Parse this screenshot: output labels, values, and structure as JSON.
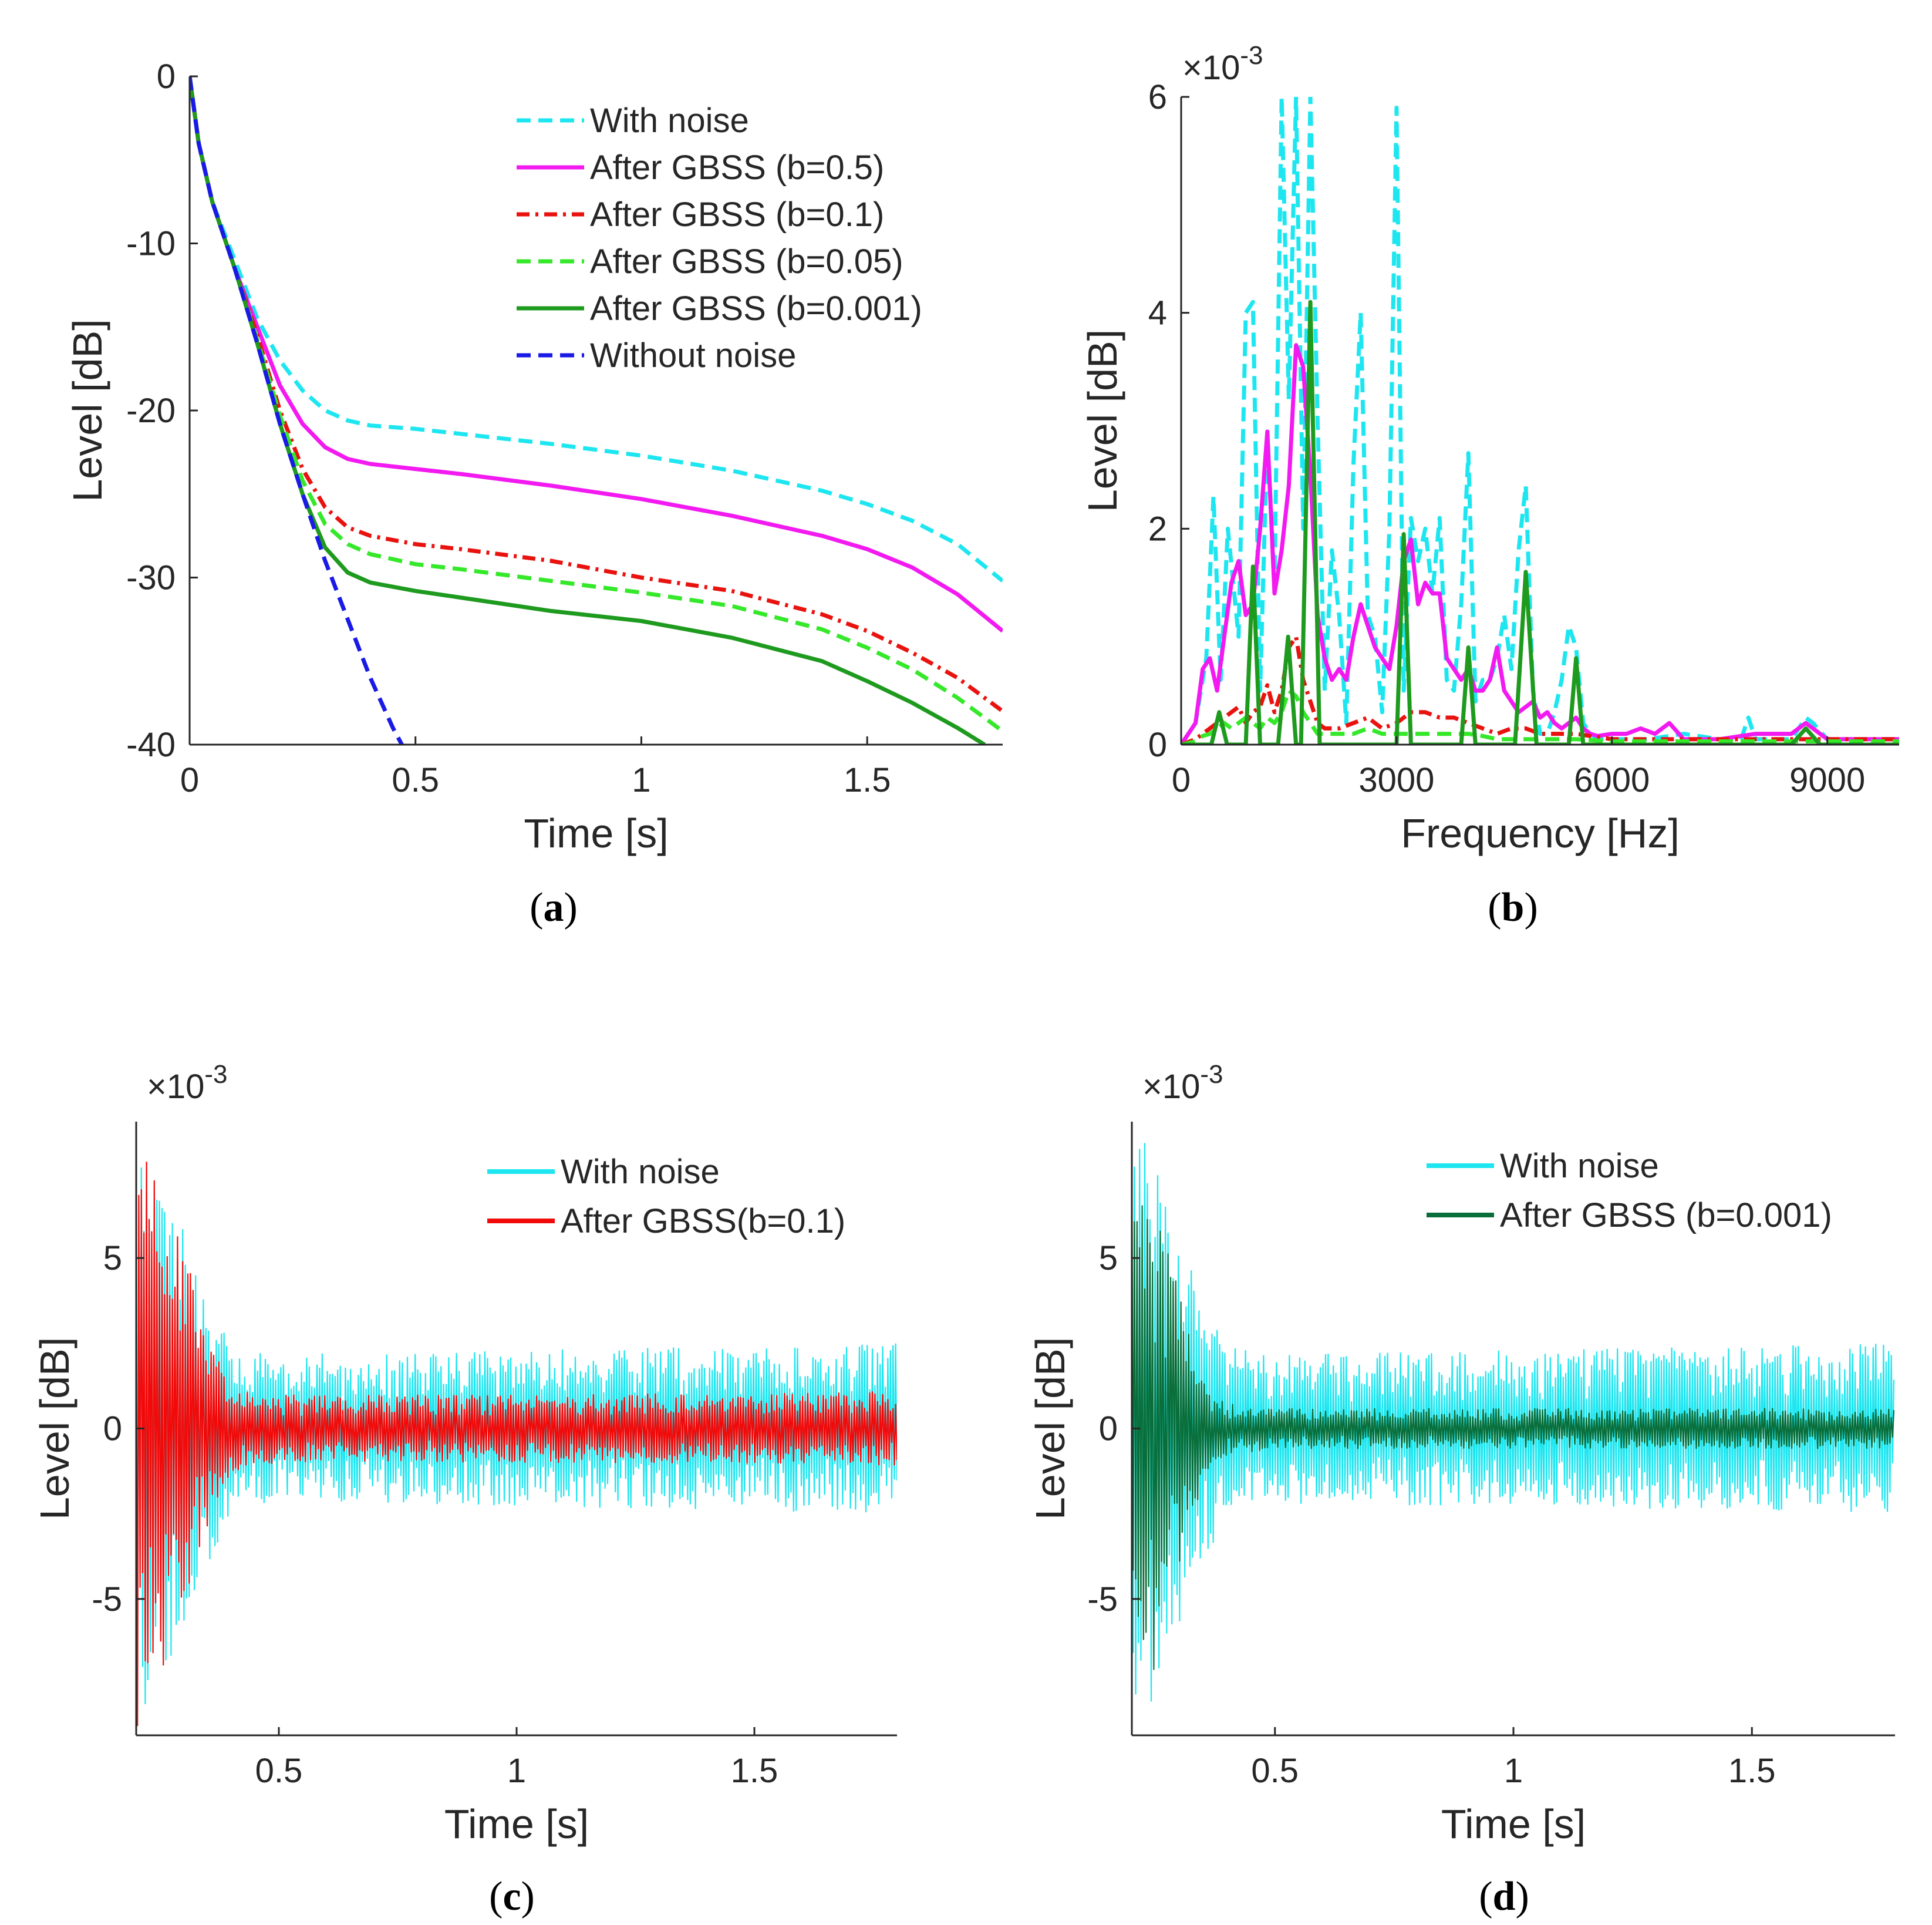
{
  "chart_data": [
    {
      "type": "line",
      "panel_label": "a",
      "xlabel": "Time [s]",
      "ylabel": "Level [dB]",
      "xlim": [
        0,
        1.8
      ],
      "ylim": [
        -40,
        0
      ],
      "xticks": [
        0,
        0.5,
        1,
        1.5
      ],
      "xtick_labels": [
        "0",
        "0.5",
        "1",
        "1.5"
      ],
      "yticks": [
        0,
        -10,
        -20,
        -30,
        -40
      ],
      "ytick_labels": [
        "0",
        "-10",
        "-20",
        "-30",
        "-40"
      ],
      "grid": false,
      "legend_position": "top-right",
      "series": [
        {
          "name": "With noise",
          "color": "#1ee6f0",
          "dash": "dashed",
          "x": [
            0,
            0.02,
            0.05,
            0.1,
            0.15,
            0.2,
            0.25,
            0.3,
            0.35,
            0.4,
            0.5,
            0.6,
            0.8,
            1.0,
            1.2,
            1.4,
            1.5,
            1.6,
            1.7,
            1.8
          ],
          "y": [
            0,
            -4,
            -7.5,
            -11,
            -14.5,
            -17,
            -18.8,
            -20,
            -20.6,
            -20.9,
            -21.1,
            -21.4,
            -22,
            -22.7,
            -23.6,
            -24.8,
            -25.6,
            -26.6,
            -28,
            -30.2
          ]
        },
        {
          "name": "After GBSS (b=0.5)",
          "color": "#f21af0",
          "dash": "solid",
          "x": [
            0,
            0.02,
            0.05,
            0.1,
            0.15,
            0.2,
            0.25,
            0.3,
            0.35,
            0.4,
            0.5,
            0.6,
            0.8,
            1.0,
            1.2,
            1.4,
            1.5,
            1.6,
            1.7,
            1.8
          ],
          "y": [
            0,
            -4,
            -7.5,
            -11.5,
            -15,
            -18.5,
            -20.8,
            -22.2,
            -22.9,
            -23.2,
            -23.5,
            -23.8,
            -24.5,
            -25.3,
            -26.3,
            -27.5,
            -28.3,
            -29.4,
            -31,
            -33.2
          ]
        },
        {
          "name": "After GBSS (b=0.1)",
          "color": "#e8130f",
          "dash": "dashdot",
          "x": [
            0,
            0.02,
            0.05,
            0.1,
            0.15,
            0.2,
            0.25,
            0.3,
            0.35,
            0.4,
            0.5,
            0.6,
            0.8,
            1.0,
            1.2,
            1.4,
            1.5,
            1.6,
            1.7,
            1.8
          ],
          "y": [
            0,
            -4,
            -7.5,
            -11.5,
            -15.5,
            -20,
            -23.5,
            -25.8,
            -27,
            -27.5,
            -28,
            -28.3,
            -29,
            -30,
            -30.8,
            -32.2,
            -33.2,
            -34.5,
            -36,
            -38
          ]
        },
        {
          "name": "After GBSS (b=0.05)",
          "color": "#35e82a",
          "dash": "dashed",
          "x": [
            0,
            0.02,
            0.05,
            0.1,
            0.15,
            0.2,
            0.25,
            0.3,
            0.35,
            0.4,
            0.5,
            0.6,
            0.8,
            1.0,
            1.2,
            1.4,
            1.5,
            1.6,
            1.7,
            1.8
          ],
          "y": [
            0,
            -4,
            -7.5,
            -11.5,
            -15.8,
            -20.3,
            -24.2,
            -26.8,
            -28,
            -28.6,
            -29.2,
            -29.5,
            -30.2,
            -30.9,
            -31.7,
            -33.1,
            -34.2,
            -35.5,
            -37.2,
            -39.2
          ]
        },
        {
          "name": "After GBSS (b=0.001)",
          "color": "#1e9a1e",
          "dash": "solid",
          "x": [
            0,
            0.02,
            0.05,
            0.1,
            0.15,
            0.2,
            0.25,
            0.3,
            0.35,
            0.4,
            0.5,
            0.6,
            0.8,
            1.0,
            1.2,
            1.4,
            1.5,
            1.6,
            1.7,
            1.76
          ],
          "y": [
            0,
            -4,
            -7.5,
            -11.5,
            -16,
            -20.8,
            -25,
            -28.2,
            -29.7,
            -30.3,
            -30.8,
            -31.2,
            -32,
            -32.6,
            -33.6,
            -35,
            -36.2,
            -37.5,
            -39,
            -40
          ]
        },
        {
          "name": "Without noise",
          "color": "#1a1ae6",
          "dash": "dashed",
          "x": [
            0,
            0.02,
            0.05,
            0.1,
            0.15,
            0.2,
            0.25,
            0.3,
            0.35,
            0.4,
            0.45,
            0.47
          ],
          "y": [
            0,
            -4,
            -7.5,
            -11.5,
            -16,
            -20.8,
            -25,
            -29,
            -32.5,
            -36,
            -39,
            -40
          ]
        }
      ]
    },
    {
      "type": "line",
      "panel_label": "b",
      "xlabel": "Frequency [Hz]",
      "ylabel": "Level [dB]",
      "exponent_label": "×10",
      "exponent_value": "-3",
      "xlim": [
        0,
        10000
      ],
      "ylim": [
        0,
        6
      ],
      "xticks": [
        0,
        3000,
        6000,
        9000
      ],
      "xtick_labels": [
        "0",
        "3000",
        "6000",
        "9000"
      ],
      "yticks": [
        0,
        2,
        4,
        6
      ],
      "ytick_labels": [
        "0",
        "2",
        "4",
        "6"
      ],
      "grid": false,
      "series": [
        {
          "name": "With noise",
          "color": "#1ee6f0",
          "dash": "dashed",
          "x": [
            0,
            200,
            350,
            450,
            550,
            650,
            800,
            900,
            1000,
            1100,
            1200,
            1300,
            1400,
            1500,
            1600,
            1700,
            1800,
            1900,
            2000,
            2100,
            2200,
            2300,
            2400,
            2500,
            2600,
            2700,
            2800,
            2900,
            3000,
            3100,
            3200,
            3300,
            3400,
            3500,
            3600,
            3700,
            3800,
            3900,
            4000,
            4100,
            4200,
            4300,
            4400,
            4500,
            4600,
            4700,
            4800,
            4900,
            5000,
            5100,
            5200,
            5300,
            5400,
            5500,
            5600,
            5700,
            5800,
            6000,
            6500,
            7000,
            7500,
            7800,
            7900,
            8000,
            8500,
            8700,
            8800,
            9000,
            9500,
            10000
          ],
          "y": [
            0,
            0.2,
            0.8,
            2.3,
            0.6,
            2.0,
            1.0,
            4.0,
            4.1,
            0.5,
            2.9,
            1.5,
            6.0,
            3.2,
            6.0,
            2.0,
            6.0,
            3.0,
            0.5,
            1.8,
            1.2,
            0.2,
            2.6,
            4.0,
            1.2,
            1.0,
            0.3,
            2.0,
            5.9,
            0.5,
            2.1,
            1.7,
            2.0,
            1.4,
            2.1,
            0.6,
            0.5,
            1.3,
            2.7,
            0.4,
            0.6,
            0.6,
            0.8,
            1.2,
            0.7,
            1.8,
            2.4,
            0.5,
            0.1,
            0.1,
            0.3,
            0.6,
            1.1,
            0.9,
            0.2,
            0.1,
            0.05,
            0.05,
            0.05,
            0.1,
            0.05,
            0.05,
            0.25,
            0.05,
            0.05,
            0.25,
            0.2,
            0.05,
            0.05,
            0.05
          ]
        },
        {
          "name": "After GBSS (b=0.5)",
          "color": "#f21af0",
          "dash": "solid",
          "x": [
            0,
            200,
            300,
            400,
            500,
            600,
            700,
            800,
            900,
            1000,
            1100,
            1200,
            1300,
            1400,
            1500,
            1600,
            1700,
            1800,
            1900,
            2000,
            2100,
            2200,
            2300,
            2400,
            2500,
            2600,
            2700,
            2800,
            2900,
            3000,
            3100,
            3200,
            3300,
            3400,
            3500,
            3600,
            3700,
            3800,
            3900,
            4000,
            4100,
            4200,
            4300,
            4400,
            4500,
            4600,
            4700,
            4800,
            4900,
            5000,
            5100,
            5200,
            5300,
            5400,
            5500,
            5600,
            5700,
            5800,
            6000,
            6200,
            6400,
            6600,
            6800,
            7000,
            7500,
            8000,
            8500,
            8700,
            9000,
            9500,
            10000
          ],
          "y": [
            0,
            0.2,
            0.7,
            0.8,
            0.5,
            1.0,
            1.5,
            1.7,
            1.2,
            1.3,
            2.0,
            2.9,
            1.4,
            1.8,
            2.4,
            3.7,
            3.5,
            2.5,
            1.2,
            0.8,
            0.6,
            0.7,
            0.6,
            1.0,
            1.3,
            1.1,
            0.9,
            0.8,
            0.7,
            1.1,
            1.7,
            1.9,
            1.3,
            1.5,
            1.4,
            1.4,
            0.8,
            0.7,
            0.6,
            0.7,
            0.5,
            0.5,
            0.6,
            0.9,
            0.5,
            0.4,
            0.3,
            0.35,
            0.4,
            0.25,
            0.3,
            0.2,
            0.15,
            0.2,
            0.25,
            0.15,
            0.1,
            0.08,
            0.1,
            0.1,
            0.15,
            0.1,
            0.2,
            0.05,
            0.05,
            0.1,
            0.1,
            0.2,
            0.05,
            0.05,
            0.05
          ]
        },
        {
          "name": "After GBSS (b=0.1)",
          "color": "#e8130f",
          "dash": "dashdot",
          "x": [
            0,
            200,
            300,
            400,
            500,
            600,
            700,
            800,
            900,
            1000,
            1100,
            1200,
            1300,
            1400,
            1500,
            1600,
            1700,
            1800,
            1900,
            2000,
            2200,
            2400,
            2600,
            2800,
            3000,
            3200,
            3400,
            3600,
            3800,
            4000,
            4200,
            4400,
            4600,
            4800,
            5000,
            5500,
            6000,
            7000,
            8000,
            9000,
            10000
          ],
          "y": [
            0,
            0.05,
            0.1,
            0.15,
            0.2,
            0.25,
            0.3,
            0.35,
            0.2,
            0.3,
            0.35,
            0.55,
            0.3,
            0.5,
            0.9,
            1.0,
            0.6,
            0.4,
            0.2,
            0.15,
            0.15,
            0.2,
            0.25,
            0.15,
            0.2,
            0.3,
            0.3,
            0.25,
            0.25,
            0.2,
            0.15,
            0.1,
            0.15,
            0.15,
            0.1,
            0.1,
            0.05,
            0.05,
            0.05,
            0.05,
            0.05
          ]
        },
        {
          "name": "After GBSS (b=0.05)",
          "color": "#35e82a",
          "dash": "dashed",
          "x": [
            0,
            200,
            300,
            400,
            500,
            600,
            700,
            800,
            900,
            1000,
            1100,
            1200,
            1300,
            1400,
            1500,
            1600,
            1700,
            1800,
            1900,
            2000,
            2200,
            2400,
            2600,
            2800,
            3000,
            3200,
            3400,
            3600,
            3800,
            4000,
            4200,
            4400,
            4600,
            4800,
            5000,
            5500,
            6000,
            7000,
            8000,
            9000,
            10000
          ],
          "y": [
            0,
            0.03,
            0.08,
            0.1,
            0.15,
            0.2,
            0.15,
            0.2,
            0.25,
            0.2,
            0.15,
            0.25,
            0.2,
            0.3,
            0.5,
            0.45,
            0.3,
            0.2,
            0.1,
            0.1,
            0.1,
            0.1,
            0.15,
            0.1,
            0.1,
            0.1,
            0.1,
            0.1,
            0.1,
            0.1,
            0.08,
            0.05,
            0.05,
            0.05,
            0.05,
            0.05,
            0.03,
            0.03,
            0.03,
            0.03,
            0.03
          ]
        },
        {
          "name": "After GBSS (b=0.001)",
          "color": "#1e9a1e",
          "dash": "solid",
          "x": [
            0,
            420,
            530,
            640,
            900,
            1000,
            1100,
            1350,
            1490,
            1600,
            1670,
            1800,
            1930,
            3000,
            3100,
            3200,
            3900,
            4000,
            4100,
            4650,
            4800,
            4950,
            5400,
            5500,
            5600,
            8500,
            8700,
            8900,
            10000
          ],
          "y": [
            0,
            0,
            0.3,
            0,
            0,
            1.65,
            0,
            0,
            1.0,
            0,
            0,
            4.1,
            0,
            0,
            1.95,
            0,
            0,
            0.9,
            0,
            0,
            1.6,
            0,
            0,
            0.8,
            0,
            0,
            0.15,
            0,
            0
          ]
        }
      ]
    },
    {
      "type": "line",
      "panel_label": "c",
      "xlabel": "Time [s]",
      "ylabel": "Level [dB]",
      "exponent_label": "×10",
      "exponent_value": "-3",
      "xlim": [
        0.2,
        1.8
      ],
      "ylim": [
        -9,
        9
      ],
      "xticks": [
        0.5,
        1,
        1.5
      ],
      "xtick_labels": [
        "0.5",
        "1",
        "1.5"
      ],
      "yticks": [
        5,
        0,
        -5
      ],
      "ytick_labels": [
        "5",
        "0",
        "-5"
      ],
      "grid": false,
      "legend_position": "top-right",
      "series": [
        {
          "name": "With noise",
          "color": "#1ee6f0",
          "envelope_t": [
            0.2,
            0.25,
            0.3,
            0.35,
            0.38,
            0.4,
            0.5,
            1.0,
            1.8
          ],
          "envelope_mV": [
            9,
            8,
            6,
            4.2,
            3.2,
            2.4,
            2.2,
            2.3,
            2.5
          ]
        },
        {
          "name": "After GBSS(b=0.1)",
          "color": "#f20a0a",
          "envelope_t": [
            0.2,
            0.25,
            0.3,
            0.35,
            0.38,
            0.4,
            0.5,
            1.0,
            1.8
          ],
          "envelope_mV": [
            9,
            7.8,
            5.2,
            3.0,
            1.8,
            1.3,
            1.0,
            1.0,
            1.1
          ]
        }
      ]
    },
    {
      "type": "line",
      "panel_label": "d",
      "xlabel": "Time [s]",
      "ylabel": "Level [dB]",
      "exponent_label": "×10",
      "exponent_value": "-3",
      "xlim": [
        0.2,
        1.8
      ],
      "ylim": [
        -9,
        9
      ],
      "xticks": [
        0.5,
        1,
        1.5
      ],
      "xtick_labels": [
        "0.5",
        "1",
        "1.5"
      ],
      "yticks": [
        5,
        0,
        -5
      ],
      "ytick_labels": [
        "5",
        "0",
        "-5"
      ],
      "grid": false,
      "legend_position": "top-right",
      "series": [
        {
          "name": "With noise",
          "color": "#1ee6f0",
          "envelope_t": [
            0.2,
            0.25,
            0.3,
            0.35,
            0.38,
            0.4,
            0.5,
            1.0,
            1.8
          ],
          "envelope_mV": [
            9,
            8,
            6,
            4.2,
            3.2,
            2.4,
            2.2,
            2.3,
            2.5
          ]
        },
        {
          "name": "After GBSS (b=0.001)",
          "color": "#0a6e3a",
          "envelope_t": [
            0.2,
            0.25,
            0.3,
            0.35,
            0.38,
            0.4,
            0.5,
            1.0,
            1.8
          ],
          "envelope_mV": [
            9,
            7.0,
            4.0,
            1.6,
            1.0,
            0.8,
            0.6,
            0.6,
            0.6
          ]
        }
      ]
    }
  ]
}
